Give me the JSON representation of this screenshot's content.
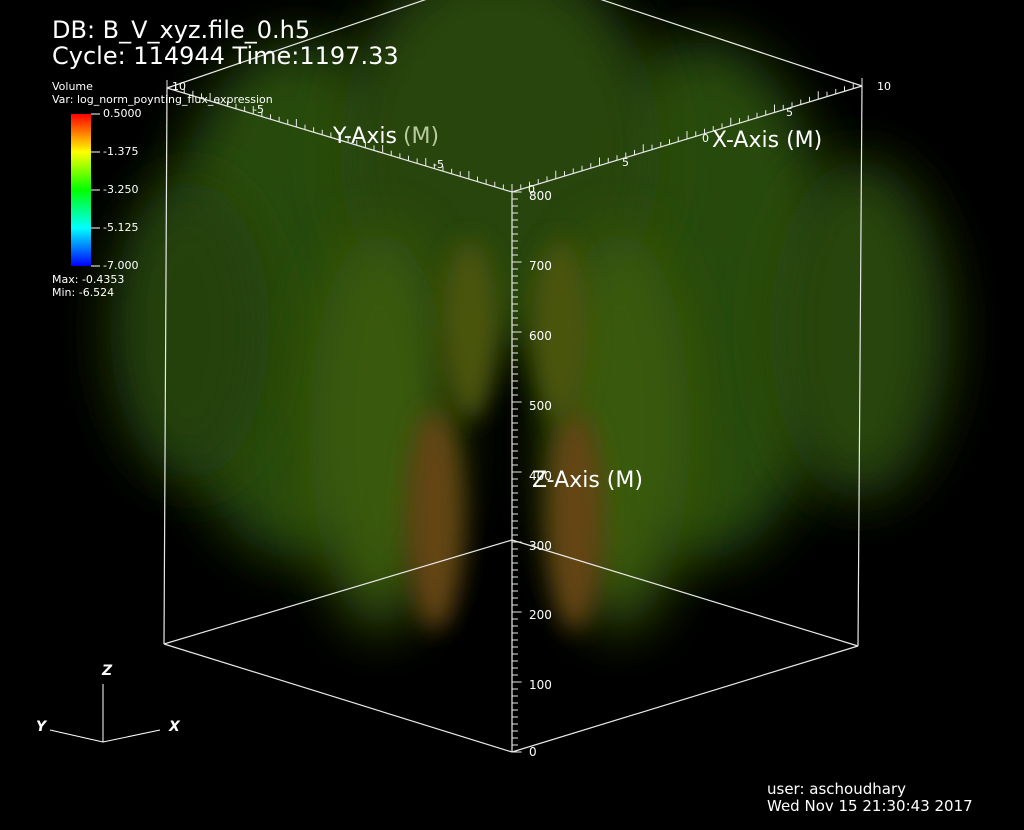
{
  "header": {
    "db_label": "DB: B_V_xyz.file_0.h5",
    "cycle_time": "Cycle: 114944  Time:1197.33"
  },
  "legend": {
    "title": "Volume",
    "var": "Var: log_norm_poynting_flux_expression",
    "ticks": [
      "0.5000",
      "-1.375",
      "-3.250",
      "-5.125",
      "-7.000"
    ],
    "max": "Max: -0.4353",
    "min": "Min: -6.524",
    "colors": [
      "#ff0000",
      "#ffff00",
      "#00ff00",
      "#00ffff",
      "#0000ff"
    ]
  },
  "axes": {
    "x_label": "X-Axis (M)",
    "y_label_main": "Y-Axis",
    "y_label_unit": "(M)",
    "z_label": "Z-Axis (M)",
    "z_ticks": [
      "0",
      "100",
      "200",
      "300",
      "400",
      "500",
      "600",
      "700",
      "800"
    ],
    "x_ticks": [
      "0",
      "5",
      "10"
    ],
    "y_ticks": [
      "-5",
      "-5",
      "-10"
    ],
    "top_small": "0"
  },
  "triad": {
    "x": "X",
    "y": "Y",
    "z": "Z"
  },
  "footer": {
    "user": "user: aschoudhary",
    "date": "Wed Nov 15 21:30:43 2017"
  }
}
